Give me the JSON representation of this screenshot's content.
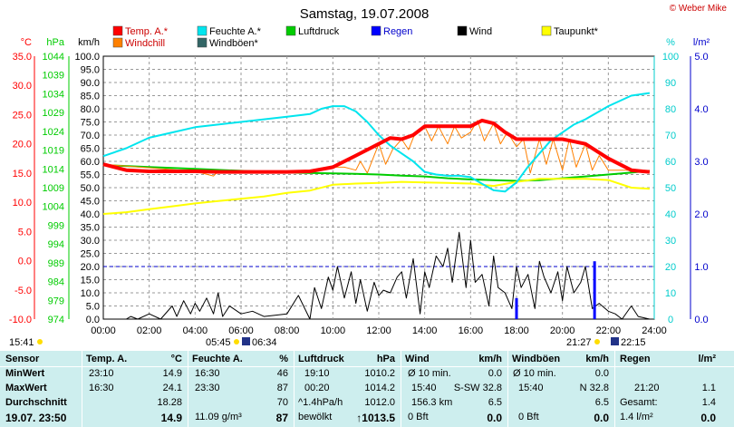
{
  "chart_data": {
    "type": "line",
    "title": "Samstag, 19.07.2008",
    "watermark": "© Weber Mike",
    "xlim": [
      0,
      24
    ],
    "x_ticks": [
      "00:00",
      "02:00",
      "04:00",
      "06:00",
      "08:00",
      "10:00",
      "12:00",
      "14:00",
      "16:00",
      "18:00",
      "20:00",
      "22:00",
      "24:00"
    ],
    "axes": [
      {
        "name": "temp",
        "unit": "°C",
        "color": "#ff0000",
        "range": [
          -10,
          35
        ],
        "ticks": [
          "35.0",
          "30.0",
          "25.0",
          "20.0",
          "15.0",
          "10.0",
          "5.0",
          "0.0",
          "-5.0",
          "-10.0"
        ]
      },
      {
        "name": "pressure",
        "unit": "hPa",
        "color": "#00cc00",
        "range": [
          974,
          1044
        ],
        "ticks": [
          "1044",
          "1039",
          "1034",
          "1029",
          "1024",
          "1019",
          "1014",
          "1009",
          "1004",
          "999",
          "994",
          "989",
          "984",
          "979",
          "974"
        ]
      },
      {
        "name": "wind",
        "unit": "km/h",
        "color": "#000000",
        "range": [
          0,
          100
        ],
        "ticks": [
          "100.0",
          "95.0",
          "90.0",
          "85.0",
          "80.0",
          "75.0",
          "70.0",
          "65.0",
          "60.0",
          "55.0",
          "50.0",
          "45.0",
          "40.0",
          "35.0",
          "30.0",
          "25.0",
          "20.0",
          "15.0",
          "10.0",
          "5.0",
          "0.0"
        ]
      },
      {
        "name": "humidity",
        "unit": "%",
        "color": "#00cccc",
        "range": [
          0,
          100
        ],
        "ticks": [
          "100",
          "90",
          "80",
          "70",
          "60",
          "50",
          "40",
          "30",
          "20",
          "10",
          "0"
        ]
      },
      {
        "name": "rain",
        "unit": "l/m²",
        "color": "#0000cc",
        "range": [
          0,
          5
        ],
        "ticks": [
          "5.0",
          "4.0",
          "3.0",
          "2.0",
          "1.0",
          "0.0"
        ]
      }
    ],
    "legend": [
      {
        "label": "Temp. A.*",
        "color": "#ff0000"
      },
      {
        "label": "Feuchte A.*",
        "color": "#00e5ee"
      },
      {
        "label": "Luftdruck",
        "color": "#00cc00"
      },
      {
        "label": "Regen",
        "color": "#0000ff"
      },
      {
        "label": "Wind",
        "color": "#000000"
      },
      {
        "label": "Taupunkt*",
        "color": "#ffff00"
      },
      {
        "label": "Windchill",
        "color": "#ff8000"
      },
      {
        "label": "Windböen*",
        "color": "#336666"
      }
    ],
    "rain_reference_line": 1.0,
    "series": [
      {
        "name": "Temp. A.*",
        "axis": "temp",
        "color": "#ff0000",
        "width": 4,
        "x": [
          0,
          1,
          2,
          3,
          4,
          5,
          6,
          7,
          8,
          9,
          10,
          11,
          12,
          12.5,
          13,
          13.5,
          14,
          15,
          16,
          16.5,
          17,
          17.5,
          18,
          19,
          20,
          21,
          22,
          23,
          23.5,
          23.8
        ],
        "y": [
          16.5,
          15.5,
          15.3,
          15.3,
          15.3,
          15.2,
          15.2,
          15.2,
          15.2,
          15.3,
          16.0,
          18.0,
          20.0,
          21.0,
          20.8,
          21.5,
          23.0,
          23.0,
          23.0,
          24.0,
          23.5,
          22.0,
          20.8,
          20.8,
          20.8,
          20.0,
          17.5,
          15.5,
          15.3,
          15.2
        ]
      },
      {
        "name": "Windchill",
        "axis": "temp",
        "color": "#ff8000",
        "width": 1,
        "x": [
          0,
          4,
          4.8,
          5,
          6,
          8,
          9,
          10,
          10.5,
          11,
          11.2,
          11.5,
          11.8,
          12,
          12.3,
          12.6,
          13,
          13.3,
          13.6,
          14,
          14.3,
          14.6,
          15,
          15.3,
          15.6,
          16,
          16.3,
          16.6,
          17,
          17.3,
          17.6,
          18,
          18.3,
          18.6,
          19,
          19.3,
          19.6,
          20,
          20.3,
          20.6,
          21,
          21.3,
          21.6,
          22,
          23,
          23.8
        ],
        "y": [
          16.5,
          15.3,
          14.5,
          15.3,
          15.2,
          15.2,
          15.3,
          16.0,
          16.0,
          15.5,
          17.0,
          15.0,
          18.0,
          20.0,
          16.5,
          19.0,
          20.8,
          19.0,
          22.0,
          23.0,
          20.5,
          23.0,
          20.0,
          23.0,
          21.0,
          22.0,
          24.0,
          20.5,
          23.5,
          20.0,
          22.0,
          19.5,
          20.8,
          15.0,
          20.8,
          16.5,
          20.8,
          15.5,
          20.8,
          16.0,
          20.0,
          15.5,
          18.0,
          15.5,
          15.5,
          15.2
        ]
      },
      {
        "name": "Feuchte A.*",
        "axis": "humidity",
        "color": "#00e5ee",
        "width": 2,
        "x": [
          0,
          1,
          2,
          3,
          4,
          5,
          6,
          7,
          8,
          9,
          9.5,
          10,
          10.5,
          11,
          11.5,
          12,
          12.5,
          13,
          13.5,
          14,
          14.5,
          15,
          15.5,
          16,
          16.5,
          17,
          17.5,
          18,
          18.5,
          19,
          19.5,
          20,
          20.5,
          21,
          22,
          23,
          23.8
        ],
        "y": [
          62,
          65,
          69,
          71,
          73,
          74,
          75,
          76,
          77,
          78,
          80,
          81,
          81,
          79,
          75,
          70,
          66,
          63,
          60,
          56,
          55,
          54.5,
          54.5,
          54,
          51.5,
          49,
          48.5,
          52,
          58,
          63,
          68,
          71,
          74,
          76,
          81,
          85,
          86
        ]
      },
      {
        "name": "Luftdruck",
        "axis": "pressure",
        "color": "#00cc00",
        "width": 2,
        "x": [
          0,
          2,
          4,
          6,
          8,
          10,
          11,
          12,
          13,
          14,
          15,
          16,
          17,
          18,
          19,
          20,
          21,
          22,
          23,
          23.8
        ],
        "y": [
          1015.0,
          1014.5,
          1014.0,
          1013.5,
          1013.0,
          1012.8,
          1012.7,
          1012.5,
          1012.2,
          1012.0,
          1011.5,
          1011.2,
          1011.0,
          1010.8,
          1011.0,
          1011.5,
          1012.0,
          1012.5,
          1013.0,
          1013.5
        ]
      },
      {
        "name": "Taupunkt*",
        "axis": "temp",
        "color": "#ffff00",
        "width": 2,
        "x": [
          0,
          1,
          2,
          3,
          4,
          5,
          6,
          7,
          8,
          9,
          10,
          11,
          12,
          13,
          14,
          15,
          16,
          17,
          18,
          19,
          20,
          21,
          22,
          23,
          23.8
        ],
        "y": [
          8.0,
          8.3,
          8.8,
          9.3,
          9.8,
          10.2,
          10.6,
          11.0,
          11.6,
          12.0,
          13.0,
          13.2,
          13.3,
          13.5,
          13.4,
          13.3,
          13.2,
          12.8,
          13.5,
          14.0,
          14.0,
          14.0,
          13.8,
          12.5,
          12.3
        ]
      },
      {
        "name": "Wind",
        "axis": "wind",
        "color": "#000000",
        "width": 1,
        "x": [
          0,
          1,
          1.2,
          1.5,
          2,
          2.5,
          3,
          3.2,
          3.5,
          3.8,
          4,
          4.2,
          4.5,
          4.8,
          5,
          5.2,
          5.5,
          6,
          6.5,
          7,
          8,
          8.5,
          9,
          9.2,
          9.5,
          9.8,
          10,
          10.2,
          10.5,
          10.8,
          11,
          11.2,
          11.5,
          11.8,
          12,
          12.2,
          12.5,
          12.8,
          13,
          13.2,
          13.5,
          13.8,
          14,
          14.2,
          14.5,
          14.8,
          15,
          15.2,
          15.5,
          15.8,
          16,
          16.2,
          16.5,
          16.8,
          17,
          17.2,
          17.5,
          17.8,
          18,
          18.2,
          18.5,
          18.8,
          19,
          19.2,
          19.5,
          19.8,
          20,
          20.2,
          20.5,
          20.8,
          21,
          21.3,
          21.6,
          22,
          22.3,
          22.6,
          23,
          23.3,
          23.8
        ],
        "y": [
          0,
          0,
          1,
          0,
          2,
          0,
          5,
          1,
          7,
          2,
          6,
          3,
          8,
          2,
          10,
          1,
          5,
          2,
          3,
          1,
          2,
          9,
          0,
          12,
          4,
          16,
          11,
          20,
          8,
          18,
          6,
          15,
          3,
          14,
          9,
          11,
          10,
          16,
          18,
          8,
          23,
          2,
          18,
          12,
          24,
          20,
          27,
          14,
          33,
          12,
          30,
          14,
          17,
          5,
          24,
          12,
          10,
          4,
          20,
          12,
          17,
          4,
          22,
          16,
          10,
          18,
          7,
          20,
          10,
          14,
          20,
          4,
          6,
          3,
          2,
          0,
          5,
          1,
          0
        ]
      },
      {
        "name": "Regen",
        "axis": "rain",
        "color": "#0000ff",
        "width": 3,
        "x": [
          18.0,
          21.4
        ],
        "y": [
          0.4,
          1.1
        ]
      }
    ]
  },
  "below_chart": {
    "sunrise": "05:45",
    "moonrise": "06:34",
    "sunset": "21:27",
    "moonset": "22:15",
    "left_time": "15:41"
  },
  "table": {
    "sensor": {
      "title": "Sensor",
      "rows": [
        "MinWert",
        "MaxWert",
        "Durchschnitt",
        "19.07. 23:50"
      ]
    },
    "temp": {
      "title": "Temp. A.",
      "unit": "°C",
      "min_time": "23:10",
      "min_val": "14.9",
      "max_time": "16:30",
      "max_val": "24.1",
      "avg_val": "18.28",
      "cur_val": "14.9"
    },
    "hum": {
      "title": "Feuchte A.",
      "unit": "%",
      "min_time": "16:30",
      "min_val": "46",
      "max_time": "23:30",
      "max_val": "87",
      "avg_val": "70",
      "cur_extra": "11.09 g/m³",
      "cur_val": "87"
    },
    "press": {
      "title": "Luftdruck",
      "unit": "hPa",
      "min_time": "19:10",
      "min_val": "1010.2",
      "max_time": "00:20",
      "max_val": "1014.2",
      "avg_label": "^1.4hPa/h",
      "avg_val": "1012.0",
      "cur_label": "bewölkt",
      "cur_val": "↑1013.5"
    },
    "wind": {
      "title": "Wind",
      "unit": "km/h",
      "r1_label": "Ø 10 min.",
      "r1_val": "0.0",
      "r2_time": "15:40",
      "r2_dir": "S-SW 32.8",
      "r3_label": "156.3 km",
      "r3_val": "6.5",
      "r4_label": "0 Bft",
      "r4_val": "0.0"
    },
    "gust": {
      "title": "Windböen",
      "unit": "km/h",
      "r1_label": "Ø 10 min.",
      "r1_val": "0.0",
      "r2_time": "15:40",
      "r2_dir": "N 32.8",
      "r3_val": "6.5",
      "r4_label": "0 Bft",
      "r4_val": "0.0"
    },
    "rain": {
      "title": "Regen",
      "unit": "l/m²",
      "r2_time": "21:20",
      "r2_val": "1.1",
      "r3_label": "Gesamt:",
      "r3_val": "1.4",
      "r4_label": "1.4 l/m²",
      "r4_val": "0.0"
    }
  }
}
